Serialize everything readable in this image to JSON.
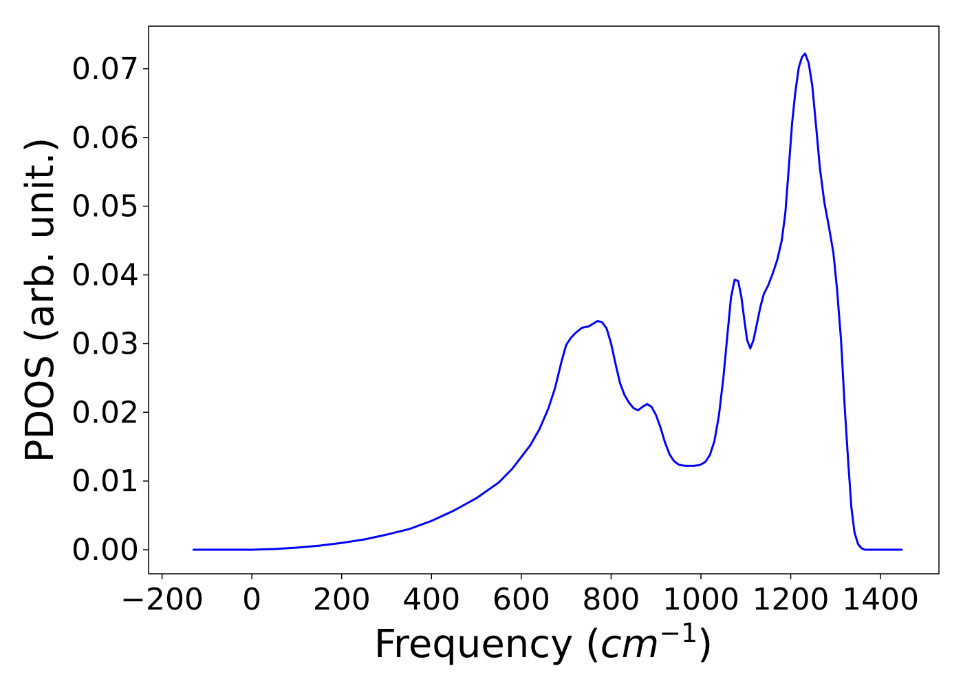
{
  "chart_data": {
    "type": "line",
    "xlabel_prefix": "Frequency (",
    "xlabel_unit": "cm",
    "xlabel_exponent": "−1",
    "xlabel_suffix": ")",
    "ylabel": "PDOS (arb. unit.)",
    "xlim": [
      -230,
      1530
    ],
    "ylim": [
      -0.0035,
      0.0762
    ],
    "xticks": [
      -200,
      0,
      200,
      400,
      600,
      800,
      1000,
      1200,
      1400
    ],
    "xtick_labels": [
      "−200",
      "0",
      "200",
      "400",
      "600",
      "800",
      "1000",
      "1200",
      "1400"
    ],
    "yticks": [
      0.0,
      0.01,
      0.02,
      0.03,
      0.04,
      0.05,
      0.06,
      0.07
    ],
    "ytick_labels": [
      "0.00",
      "0.01",
      "0.02",
      "0.03",
      "0.04",
      "0.05",
      "0.06",
      "0.07"
    ],
    "grid": false,
    "series": [
      {
        "color": "#0000ff",
        "points": [
          [
            -130,
            0.0
          ],
          [
            0,
            0.0
          ],
          [
            50,
            0.0001
          ],
          [
            100,
            0.0003
          ],
          [
            150,
            0.0006
          ],
          [
            200,
            0.001
          ],
          [
            250,
            0.0015
          ],
          [
            300,
            0.0022
          ],
          [
            350,
            0.003
          ],
          [
            400,
            0.0042
          ],
          [
            450,
            0.0057
          ],
          [
            500,
            0.0075
          ],
          [
            550,
            0.0098
          ],
          [
            580,
            0.0118
          ],
          [
            600,
            0.0135
          ],
          [
            620,
            0.0152
          ],
          [
            640,
            0.0175
          ],
          [
            660,
            0.0205
          ],
          [
            675,
            0.0235
          ],
          [
            690,
            0.0275
          ],
          [
            700,
            0.0298
          ],
          [
            710,
            0.0308
          ],
          [
            720,
            0.0315
          ],
          [
            735,
            0.0323
          ],
          [
            750,
            0.0325
          ],
          [
            760,
            0.0329
          ],
          [
            770,
            0.0333
          ],
          [
            780,
            0.0331
          ],
          [
            790,
            0.0322
          ],
          [
            800,
            0.03
          ],
          [
            810,
            0.027
          ],
          [
            820,
            0.0242
          ],
          [
            830,
            0.0225
          ],
          [
            840,
            0.0214
          ],
          [
            850,
            0.0206
          ],
          [
            860,
            0.0203
          ],
          [
            870,
            0.0208
          ],
          [
            880,
            0.0212
          ],
          [
            890,
            0.0208
          ],
          [
            900,
            0.0196
          ],
          [
            910,
            0.0178
          ],
          [
            920,
            0.0156
          ],
          [
            930,
            0.0139
          ],
          [
            940,
            0.0129
          ],
          [
            950,
            0.0124
          ],
          [
            965,
            0.0122
          ],
          [
            985,
            0.0122
          ],
          [
            1000,
            0.0124
          ],
          [
            1010,
            0.0128
          ],
          [
            1020,
            0.0138
          ],
          [
            1030,
            0.0158
          ],
          [
            1040,
            0.0195
          ],
          [
            1050,
            0.025
          ],
          [
            1060,
            0.032
          ],
          [
            1067,
            0.0367
          ],
          [
            1075,
            0.0393
          ],
          [
            1083,
            0.0391
          ],
          [
            1090,
            0.0368
          ],
          [
            1097,
            0.0333
          ],
          [
            1103,
            0.0305
          ],
          [
            1110,
            0.0293
          ],
          [
            1117,
            0.0305
          ],
          [
            1125,
            0.033
          ],
          [
            1133,
            0.0355
          ],
          [
            1140,
            0.0372
          ],
          [
            1150,
            0.0385
          ],
          [
            1160,
            0.0402
          ],
          [
            1170,
            0.0422
          ],
          [
            1180,
            0.045
          ],
          [
            1188,
            0.049
          ],
          [
            1195,
            0.055
          ],
          [
            1203,
            0.062
          ],
          [
            1210,
            0.0665
          ],
          [
            1218,
            0.0702
          ],
          [
            1225,
            0.0717
          ],
          [
            1232,
            0.0722
          ],
          [
            1240,
            0.0708
          ],
          [
            1248,
            0.0675
          ],
          [
            1256,
            0.062
          ],
          [
            1265,
            0.0555
          ],
          [
            1275,
            0.0505
          ],
          [
            1285,
            0.047
          ],
          [
            1295,
            0.0432
          ],
          [
            1303,
            0.038
          ],
          [
            1312,
            0.0305
          ],
          [
            1320,
            0.021
          ],
          [
            1328,
            0.0128
          ],
          [
            1335,
            0.0062
          ],
          [
            1342,
            0.0025
          ],
          [
            1350,
            0.0008
          ],
          [
            1358,
            0.0002
          ],
          [
            1365,
            0.0
          ],
          [
            1400,
            0.0
          ],
          [
            1447,
            0.0
          ]
        ]
      }
    ]
  }
}
